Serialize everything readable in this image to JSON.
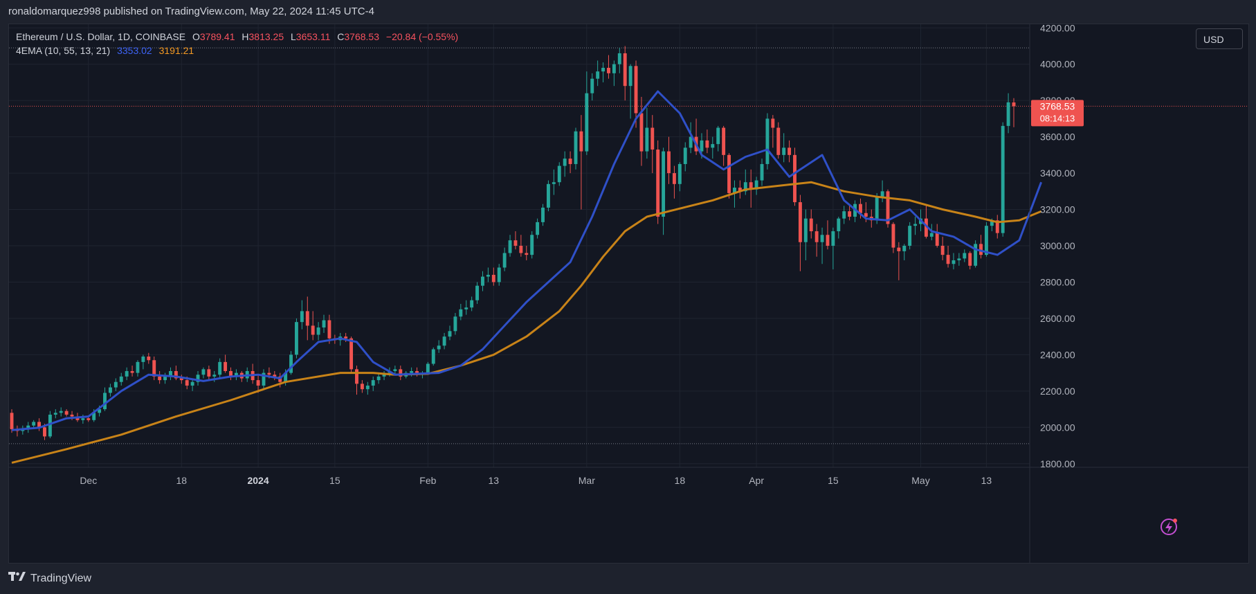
{
  "header": {
    "publisher_line": "ronaldomarquez998 published on TradingView.com, May 22, 2024 11:45 UTC-4"
  },
  "legend": {
    "symbol": "Ethereum / U.S. Dollar, 1D, COINBASE",
    "o_label": "O",
    "o_value": "3789.41",
    "h_label": "H",
    "h_value": "3813.25",
    "l_label": "L",
    "l_value": "3653.11",
    "c_label": "C",
    "c_value": "3768.53",
    "change": "−20.84 (−0.55%)",
    "indicator_name": "4EMA (10, 55, 13, 21)",
    "ema_fast_value": "3353.02",
    "ema_slow_value": "3191.21"
  },
  "toolbar": {
    "currency_button": "USD"
  },
  "price_tag": {
    "price": "3768.53",
    "countdown": "08:14:13"
  },
  "footer": {
    "brand": "TradingView",
    "logo_icon": "tradingview-logo-icon"
  },
  "colors": {
    "up": "#26a69a",
    "down": "#ef5350",
    "ema_fast": "#2f50c8",
    "ema_slow": "#c88318",
    "background": "#131722",
    "grid": "#1f2430",
    "text": "#d1d4dc"
  },
  "chart_data": {
    "type": "candlestick",
    "symbol": "ETH/USD",
    "interval": "1D",
    "ylim": [
      1780,
      4220
    ],
    "y_ticks": [
      "1800.00",
      "2000.00",
      "2200.00",
      "2400.00",
      "2600.00",
      "2800.00",
      "3000.00",
      "3200.00",
      "3400.00",
      "3600.00",
      "3800.00",
      "4000.00",
      "4200.00"
    ],
    "y_tick_values": [
      1800,
      2000,
      2200,
      2400,
      2600,
      2800,
      3000,
      3200,
      3400,
      3600,
      3800,
      4000,
      4200
    ],
    "x_ticks": [
      {
        "label": "Dec",
        "day": 14,
        "bold": false
      },
      {
        "label": "18",
        "day": 31,
        "bold": false
      },
      {
        "label": "2024",
        "day": 45,
        "bold": true
      },
      {
        "label": "15",
        "day": 59,
        "bold": false
      },
      {
        "label": "Feb",
        "day": 76,
        "bold": false
      },
      {
        "label": "13",
        "day": 88,
        "bold": false
      },
      {
        "label": "Mar",
        "day": 105,
        "bold": false
      },
      {
        "label": "18",
        "day": 122,
        "bold": false
      },
      {
        "label": "Apr",
        "day": 136,
        "bold": false
      },
      {
        "label": "15",
        "day": 150,
        "bold": false
      },
      {
        "label": "May",
        "day": 166,
        "bold": false
      },
      {
        "label": "13",
        "day": 178,
        "bold": false
      }
    ],
    "reference_lines": [
      4090,
      3768.53,
      1910
    ],
    "candles": [
      [
        2080,
        2100,
        1970,
        1990
      ],
      [
        1990,
        2010,
        1950,
        1980
      ],
      [
        1980,
        2010,
        1960,
        1990
      ],
      [
        1990,
        2030,
        1970,
        2010
      ],
      [
        2010,
        2040,
        1990,
        2030
      ],
      [
        2030,
        2050,
        1980,
        2000
      ],
      [
        2000,
        2020,
        1930,
        1950
      ],
      [
        1950,
        2090,
        1940,
        2070
      ],
      [
        2070,
        2100,
        2050,
        2080
      ],
      [
        2080,
        2110,
        2060,
        2090
      ],
      [
        2090,
        2100,
        2060,
        2070
      ],
      [
        2070,
        2090,
        2040,
        2060
      ],
      [
        2060,
        2080,
        2030,
        2040
      ],
      [
        2040,
        2070,
        2020,
        2050
      ],
      [
        2050,
        2060,
        2030,
        2040
      ],
      [
        2040,
        2100,
        2030,
        2080
      ],
      [
        2080,
        2120,
        2060,
        2100
      ],
      [
        2100,
        2220,
        2090,
        2190
      ],
      [
        2190,
        2240,
        2170,
        2220
      ],
      [
        2220,
        2270,
        2200,
        2250
      ],
      [
        2250,
        2300,
        2230,
        2280
      ],
      [
        2280,
        2330,
        2260,
        2310
      ],
      [
        2310,
        2340,
        2280,
        2300
      ],
      [
        2300,
        2370,
        2280,
        2360
      ],
      [
        2360,
        2400,
        2320,
        2390
      ],
      [
        2390,
        2410,
        2350,
        2370
      ],
      [
        2370,
        2390,
        2260,
        2280
      ],
      [
        2280,
        2310,
        2240,
        2260
      ],
      [
        2260,
        2300,
        2240,
        2280
      ],
      [
        2280,
        2330,
        2260,
        2310
      ],
      [
        2310,
        2340,
        2260,
        2270
      ],
      [
        2270,
        2290,
        2240,
        2260
      ],
      [
        2260,
        2280,
        2210,
        2230
      ],
      [
        2230,
        2260,
        2200,
        2250
      ],
      [
        2250,
        2310,
        2230,
        2290
      ],
      [
        2290,
        2330,
        2270,
        2320
      ],
      [
        2320,
        2340,
        2260,
        2280
      ],
      [
        2280,
        2310,
        2250,
        2290
      ],
      [
        2290,
        2380,
        2270,
        2360
      ],
      [
        2360,
        2400,
        2300,
        2310
      ],
      [
        2310,
        2330,
        2260,
        2280
      ],
      [
        2280,
        2320,
        2260,
        2300
      ],
      [
        2300,
        2310,
        2250,
        2270
      ],
      [
        2270,
        2330,
        2250,
        2310
      ],
      [
        2310,
        2350,
        2240,
        2260
      ],
      [
        2260,
        2290,
        2190,
        2230
      ],
      [
        2230,
        2320,
        2210,
        2300
      ],
      [
        2300,
        2330,
        2270,
        2290
      ],
      [
        2290,
        2310,
        2260,
        2280
      ],
      [
        2280,
        2300,
        2220,
        2250
      ],
      [
        2250,
        2320,
        2230,
        2300
      ],
      [
        2300,
        2420,
        2290,
        2400
      ],
      [
        2400,
        2600,
        2380,
        2580
      ],
      [
        2580,
        2700,
        2540,
        2640
      ],
      [
        2640,
        2720,
        2480,
        2560
      ],
      [
        2560,
        2640,
        2480,
        2510
      ],
      [
        2510,
        2580,
        2480,
        2550
      ],
      [
        2550,
        2620,
        2520,
        2590
      ],
      [
        2590,
        2620,
        2460,
        2490
      ],
      [
        2490,
        2510,
        2460,
        2480
      ],
      [
        2480,
        2520,
        2450,
        2500
      ],
      [
        2500,
        2520,
        2470,
        2490
      ],
      [
        2490,
        2500,
        2300,
        2320
      ],
      [
        2320,
        2340,
        2180,
        2240
      ],
      [
        2240,
        2260,
        2190,
        2210
      ],
      [
        2210,
        2250,
        2180,
        2230
      ],
      [
        2230,
        2280,
        2200,
        2260
      ],
      [
        2260,
        2300,
        2240,
        2280
      ],
      [
        2280,
        2310,
        2260,
        2300
      ],
      [
        2300,
        2330,
        2280,
        2310
      ],
      [
        2310,
        2340,
        2290,
        2320
      ],
      [
        2320,
        2340,
        2260,
        2280
      ],
      [
        2280,
        2310,
        2270,
        2300
      ],
      [
        2300,
        2330,
        2280,
        2310
      ],
      [
        2310,
        2330,
        2280,
        2290
      ],
      [
        2290,
        2310,
        2270,
        2300
      ],
      [
        2300,
        2360,
        2290,
        2350
      ],
      [
        2350,
        2440,
        2340,
        2430
      ],
      [
        2430,
        2480,
        2410,
        2450
      ],
      [
        2450,
        2520,
        2430,
        2500
      ],
      [
        2500,
        2560,
        2480,
        2530
      ],
      [
        2530,
        2630,
        2510,
        2610
      ],
      [
        2610,
        2680,
        2590,
        2650
      ],
      [
        2650,
        2700,
        2620,
        2660
      ],
      [
        2660,
        2720,
        2640,
        2700
      ],
      [
        2700,
        2800,
        2680,
        2780
      ],
      [
        2780,
        2860,
        2750,
        2830
      ],
      [
        2830,
        2880,
        2800,
        2840
      ],
      [
        2840,
        2880,
        2780,
        2800
      ],
      [
        2800,
        2900,
        2780,
        2880
      ],
      [
        2880,
        2990,
        2860,
        2960
      ],
      [
        2960,
        3060,
        2940,
        3030
      ],
      [
        3030,
        3080,
        2980,
        3000
      ],
      [
        3000,
        3060,
        2940,
        2960
      ],
      [
        2960,
        3000,
        2920,
        2950
      ],
      [
        2950,
        3080,
        2930,
        3060
      ],
      [
        3060,
        3150,
        3040,
        3130
      ],
      [
        3130,
        3230,
        3110,
        3210
      ],
      [
        3210,
        3360,
        3190,
        3340
      ],
      [
        3340,
        3420,
        3280,
        3350
      ],
      [
        3350,
        3460,
        3330,
        3440
      ],
      [
        3440,
        3520,
        3380,
        3480
      ],
      [
        3480,
        3520,
        3400,
        3450
      ],
      [
        3450,
        3650,
        3420,
        3630
      ],
      [
        3630,
        3720,
        3200,
        3520
      ],
      [
        3520,
        3960,
        3500,
        3840
      ],
      [
        3840,
        3950,
        3800,
        3920
      ],
      [
        3920,
        4020,
        3880,
        3960
      ],
      [
        3960,
        4010,
        3900,
        3980
      ],
      [
        3980,
        4050,
        3920,
        3950
      ],
      [
        3950,
        4020,
        3880,
        4000
      ],
      [
        4000,
        4090,
        3950,
        4060
      ],
      [
        4060,
        4100,
        3800,
        3880
      ],
      [
        3880,
        4000,
        3700,
        3990
      ],
      [
        3990,
        4020,
        3650,
        3730
      ],
      [
        3730,
        3820,
        3440,
        3520
      ],
      [
        3520,
        3760,
        3480,
        3650
      ],
      [
        3650,
        3720,
        3400,
        3530
      ],
      [
        3530,
        3580,
        3120,
        3160
      ],
      [
        3160,
        3540,
        3060,
        3520
      ],
      [
        3520,
        3600,
        3340,
        3400
      ],
      [
        3400,
        3440,
        3260,
        3340
      ],
      [
        3340,
        3460,
        3300,
        3450
      ],
      [
        3450,
        3570,
        3410,
        3540
      ],
      [
        3540,
        3680,
        3510,
        3600
      ],
      [
        3600,
        3700,
        3500,
        3520
      ],
      [
        3520,
        3620,
        3480,
        3580
      ],
      [
        3580,
        3640,
        3510,
        3540
      ],
      [
        3540,
        3600,
        3480,
        3560
      ],
      [
        3560,
        3660,
        3520,
        3650
      ],
      [
        3650,
        3660,
        3440,
        3500
      ],
      [
        3500,
        3510,
        3260,
        3290
      ],
      [
        3290,
        3360,
        3210,
        3320
      ],
      [
        3320,
        3360,
        3260,
        3300
      ],
      [
        3300,
        3420,
        3280,
        3350
      ],
      [
        3350,
        3420,
        3210,
        3310
      ],
      [
        3310,
        3380,
        3280,
        3360
      ],
      [
        3360,
        3480,
        3330,
        3450
      ],
      [
        3450,
        3730,
        3420,
        3700
      ],
      [
        3700,
        3720,
        3540,
        3650
      ],
      [
        3650,
        3680,
        3480,
        3500
      ],
      [
        3500,
        3620,
        3460,
        3540
      ],
      [
        3540,
        3580,
        3460,
        3500
      ],
      [
        3500,
        3540,
        3220,
        3240
      ],
      [
        3240,
        3280,
        2860,
        3020
      ],
      [
        3020,
        3200,
        2920,
        3150
      ],
      [
        3150,
        3200,
        3040,
        3080
      ],
      [
        3080,
        3120,
        2940,
        3020
      ],
      [
        3020,
        3100,
        2900,
        3060
      ],
      [
        3060,
        3140,
        2980,
        3000
      ],
      [
        3000,
        3100,
        2870,
        3080
      ],
      [
        3080,
        3160,
        3040,
        3150
      ],
      [
        3150,
        3220,
        3120,
        3190
      ],
      [
        3190,
        3220,
        3140,
        3160
      ],
      [
        3160,
        3250,
        3130,
        3230
      ],
      [
        3230,
        3260,
        3150,
        3180
      ],
      [
        3180,
        3240,
        3130,
        3160
      ],
      [
        3160,
        3200,
        3100,
        3140
      ],
      [
        3140,
        3290,
        3120,
        3270
      ],
      [
        3270,
        3360,
        3240,
        3300
      ],
      [
        3300,
        3310,
        3100,
        3120
      ],
      [
        3120,
        3130,
        2960,
        2990
      ],
      [
        2990,
        3020,
        2810,
        2970
      ],
      [
        2970,
        3010,
        2920,
        3000
      ],
      [
        3000,
        3130,
        2980,
        3110
      ],
      [
        3110,
        3160,
        3060,
        3120
      ],
      [
        3120,
        3200,
        3080,
        3150
      ],
      [
        3150,
        3220,
        3040,
        3050
      ],
      [
        3050,
        3120,
        3030,
        3070
      ],
      [
        3070,
        3120,
        2990,
        3000
      ],
      [
        3000,
        3050,
        2920,
        2950
      ],
      [
        2950,
        3000,
        2880,
        2900
      ],
      [
        2900,
        2960,
        2870,
        2920
      ],
      [
        2920,
        2960,
        2890,
        2930
      ],
      [
        2930,
        2980,
        2910,
        2960
      ],
      [
        2960,
        2970,
        2870,
        2890
      ],
      [
        2890,
        3030,
        2880,
        3010
      ],
      [
        3010,
        3060,
        2930,
        2950
      ],
      [
        2950,
        3130,
        2940,
        3110
      ],
      [
        3110,
        3150,
        3080,
        3140
      ],
      [
        3140,
        3170,
        3040,
        3070
      ],
      [
        3070,
        3680,
        3050,
        3660
      ],
      [
        3660,
        3840,
        3620,
        3790
      ],
      [
        3789.41,
        3813.25,
        3653.11,
        3768.53
      ]
    ],
    "ema_fast": [
      [
        0,
        1985
      ],
      [
        5,
        1998
      ],
      [
        10,
        2050
      ],
      [
        14,
        2060
      ],
      [
        20,
        2200
      ],
      [
        25,
        2290
      ],
      [
        30,
        2280
      ],
      [
        35,
        2255
      ],
      [
        40,
        2280
      ],
      [
        45,
        2290
      ],
      [
        49,
        2270
      ],
      [
        52,
        2360
      ],
      [
        56,
        2470
      ],
      [
        60,
        2490
      ],
      [
        63,
        2470
      ],
      [
        66,
        2360
      ],
      [
        70,
        2290
      ],
      [
        74,
        2295
      ],
      [
        78,
        2300
      ],
      [
        82,
        2340
      ],
      [
        86,
        2430
      ],
      [
        90,
        2560
      ],
      [
        94,
        2690
      ],
      [
        98,
        2800
      ],
      [
        102,
        2910
      ],
      [
        106,
        3160
      ],
      [
        110,
        3450
      ],
      [
        114,
        3700
      ],
      [
        118,
        3850
      ],
      [
        122,
        3730
      ],
      [
        126,
        3500
      ],
      [
        130,
        3420
      ],
      [
        134,
        3490
      ],
      [
        138,
        3530
      ],
      [
        142,
        3380
      ],
      [
        145,
        3440
      ],
      [
        148,
        3500
      ],
      [
        152,
        3250
      ],
      [
        156,
        3150
      ],
      [
        160,
        3140
      ],
      [
        164,
        3200
      ],
      [
        168,
        3080
      ],
      [
        172,
        3050
      ],
      [
        176,
        2980
      ],
      [
        180,
        2950
      ],
      [
        184,
        3030
      ],
      [
        188,
        3350
      ]
    ],
    "ema_slow": [
      [
        0,
        1805
      ],
      [
        10,
        1880
      ],
      [
        20,
        1960
      ],
      [
        30,
        2060
      ],
      [
        40,
        2150
      ],
      [
        50,
        2250
      ],
      [
        60,
        2300
      ],
      [
        66,
        2300
      ],
      [
        70,
        2290
      ],
      [
        76,
        2295
      ],
      [
        82,
        2340
      ],
      [
        88,
        2400
      ],
      [
        94,
        2500
      ],
      [
        100,
        2640
      ],
      [
        104,
        2780
      ],
      [
        108,
        2940
      ],
      [
        112,
        3080
      ],
      [
        116,
        3160
      ],
      [
        120,
        3190
      ],
      [
        128,
        3250
      ],
      [
        134,
        3310
      ],
      [
        140,
        3330
      ],
      [
        146,
        3350
      ],
      [
        152,
        3300
      ],
      [
        158,
        3270
      ],
      [
        164,
        3250
      ],
      [
        170,
        3200
      ],
      [
        176,
        3160
      ],
      [
        180,
        3130
      ],
      [
        184,
        3140
      ],
      [
        188,
        3190
      ]
    ]
  }
}
